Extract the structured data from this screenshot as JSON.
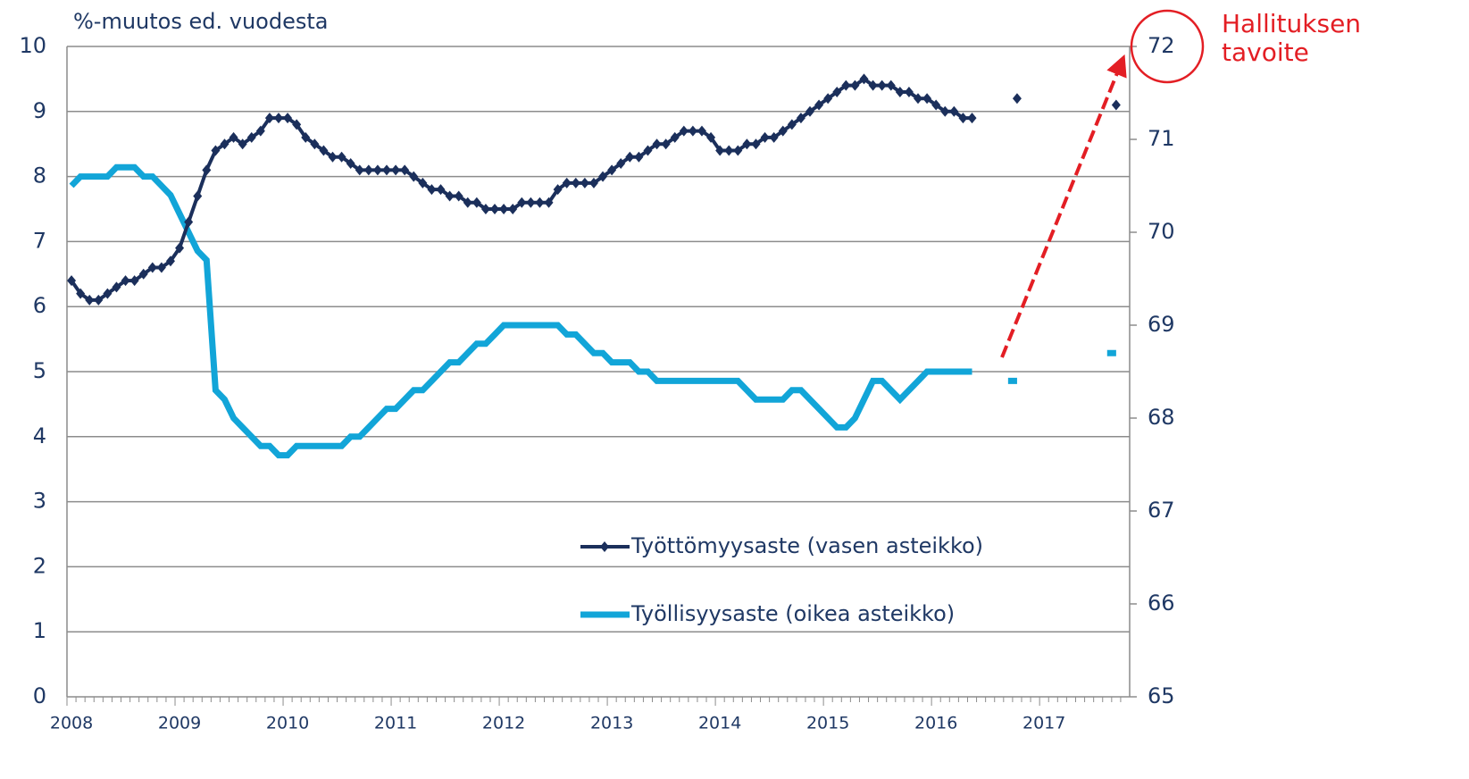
{
  "chart_data": {
    "type": "line",
    "y_label": "%-muutos ed. vuodesta",
    "annotation": "Hallituksen tavoite",
    "categories": [
      "2008",
      null,
      null,
      null,
      null,
      null,
      null,
      null,
      null,
      null,
      null,
      null,
      "2009",
      null,
      null,
      null,
      null,
      null,
      null,
      null,
      null,
      null,
      null,
      null,
      "2010",
      null,
      null,
      null,
      null,
      null,
      null,
      null,
      null,
      null,
      null,
      null,
      "2011",
      null,
      null,
      null,
      null,
      null,
      null,
      null,
      null,
      null,
      null,
      null,
      "2012",
      null,
      null,
      null,
      null,
      null,
      null,
      null,
      null,
      null,
      null,
      null,
      "2013",
      null,
      null,
      null,
      null,
      null,
      null,
      null,
      null,
      null,
      null,
      null,
      "2014",
      null,
      null,
      null,
      null,
      null,
      null,
      null,
      null,
      null,
      null,
      null,
      "2015",
      null,
      null,
      null,
      null,
      null,
      null,
      null,
      null,
      null,
      null,
      null,
      "2016",
      null,
      null,
      null,
      null,
      null,
      null,
      null,
      null,
      null,
      null,
      null,
      "2017",
      null,
      null,
      null,
      null,
      null,
      null,
      null,
      null,
      null
    ],
    "series": [
      {
        "name": "Työttömyysaste (vasen asteikko)",
        "color": "#1b2f5b",
        "marker": "diamond",
        "values": [
          6.4,
          6.2,
          6.1,
          6.1,
          6.2,
          6.3,
          6.4,
          6.4,
          6.5,
          6.6,
          6.6,
          6.7,
          6.9,
          7.3,
          7.7,
          8.1,
          8.4,
          8.5,
          8.6,
          8.5,
          8.6,
          8.7,
          8.9,
          8.9,
          8.9,
          8.8,
          8.6,
          8.5,
          8.4,
          8.3,
          8.3,
          8.2,
          8.1,
          8.1,
          8.1,
          8.1,
          8.1,
          8.1,
          8.0,
          7.9,
          7.8,
          7.8,
          7.7,
          7.7,
          7.6,
          7.6,
          7.5,
          7.5,
          7.5,
          7.5,
          7.6,
          7.6,
          7.6,
          7.6,
          7.8,
          7.9,
          7.9,
          7.9,
          7.9,
          8.0,
          8.1,
          8.2,
          8.3,
          8.3,
          8.4,
          8.5,
          8.5,
          8.6,
          8.7,
          8.7,
          8.7,
          8.6,
          8.4,
          8.4,
          8.4,
          8.5,
          8.5,
          8.6,
          8.6,
          8.7,
          8.8,
          8.9,
          9.0,
          9.1,
          9.2,
          9.3,
          9.4,
          9.4,
          9.5,
          9.4,
          9.4,
          9.4,
          9.3,
          9.3,
          9.2,
          9.2,
          9.1,
          9.0,
          9.0,
          8.9,
          8.9,
          null,
          null,
          null,
          null,
          9.2,
          null,
          null,
          null,
          null,
          null,
          null,
          null,
          null,
          null,
          null,
          9.1,
          null
        ]
      },
      {
        "name": "Työllisyysaste (oikea asteikko)",
        "color": "#12a5d8",
        "axis": "y2",
        "values": [
          70.5,
          70.6,
          70.6,
          70.6,
          70.6,
          70.7,
          70.7,
          70.7,
          70.6,
          70.6,
          70.5,
          70.4,
          70.2,
          70.0,
          69.8,
          69.7,
          68.3,
          68.2,
          68.0,
          67.9,
          67.8,
          67.7,
          67.7,
          67.6,
          67.6,
          67.7,
          67.7,
          67.7,
          67.7,
          67.7,
          67.7,
          67.8,
          67.8,
          67.9,
          68.0,
          68.1,
          68.1,
          68.2,
          68.3,
          68.3,
          68.4,
          68.5,
          68.6,
          68.6,
          68.7,
          68.8,
          68.8,
          68.9,
          69.0,
          69.0,
          69.0,
          69.0,
          69.0,
          69.0,
          69.0,
          68.9,
          68.9,
          68.8,
          68.7,
          68.7,
          68.6,
          68.6,
          68.6,
          68.5,
          68.5,
          68.4,
          68.4,
          68.4,
          68.4,
          68.4,
          68.4,
          68.4,
          68.4,
          68.4,
          68.4,
          68.3,
          68.2,
          68.2,
          68.2,
          68.2,
          68.3,
          68.3,
          68.2,
          68.1,
          68.0,
          67.9,
          67.9,
          68.0,
          68.2,
          68.4,
          68.4,
          68.3,
          68.2,
          68.3,
          68.4,
          68.5,
          68.5,
          68.5,
          68.5,
          68.5,
          68.5,
          null,
          null,
          null,
          68.4,
          68.4,
          null,
          null,
          null,
          null,
          null,
          null,
          null,
          null,
          null,
          68.7,
          68.7,
          null
        ]
      }
    ],
    "ylim": [
      0,
      10
    ],
    "yticks": [
      0,
      1,
      2,
      3,
      4,
      5,
      6,
      7,
      8,
      9,
      10
    ],
    "y2lim": [
      65,
      72
    ],
    "y2ticks": [
      65,
      66,
      67,
      68,
      69,
      70,
      71,
      72
    ],
    "grid": true
  }
}
